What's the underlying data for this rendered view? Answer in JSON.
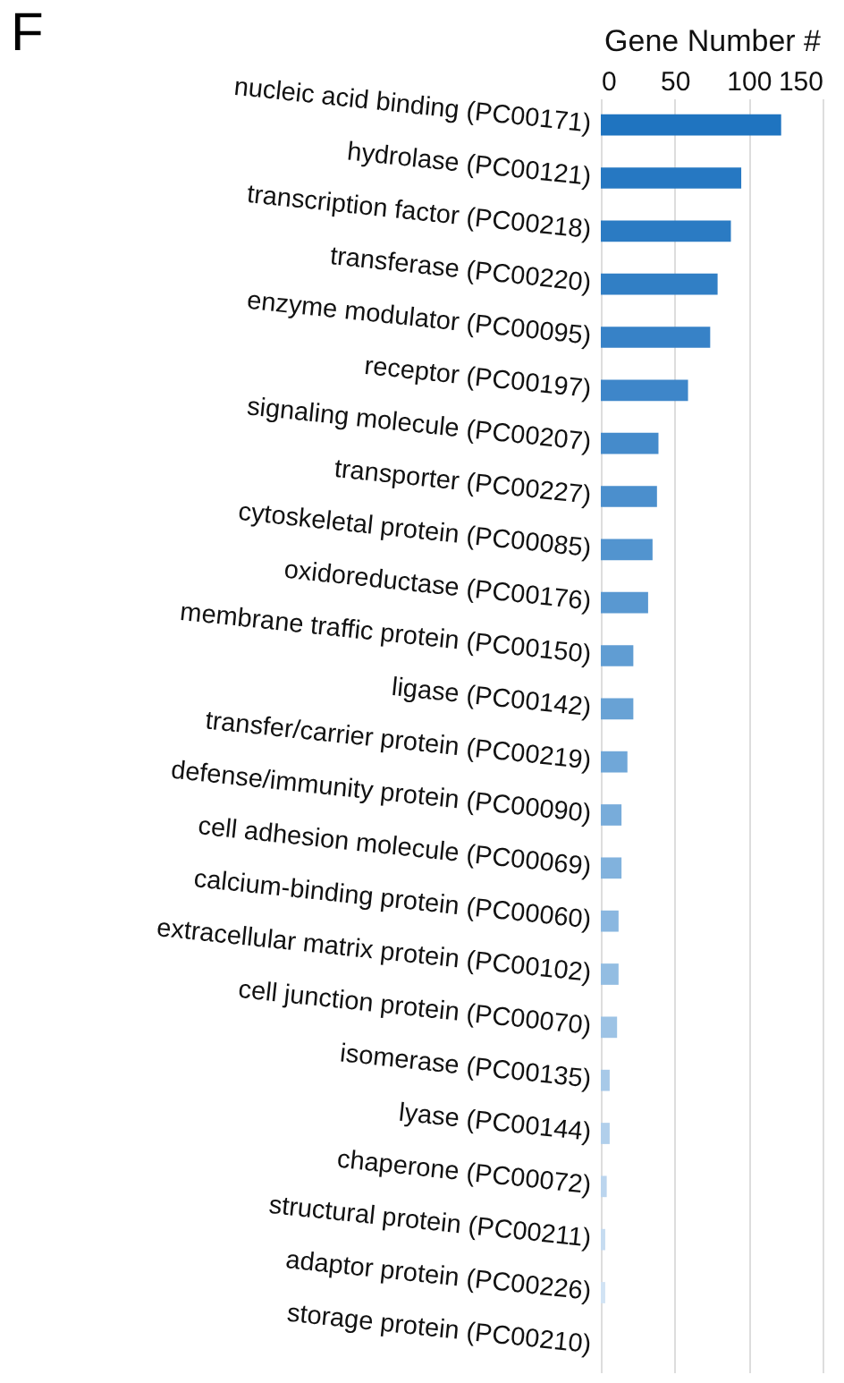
{
  "chart_data": {
    "type": "bar",
    "orientation": "horizontal",
    "title": "F",
    "xlabel": "Gene Number #",
    "categories": [
      "nucleic acid binding (PC00171)",
      "hydrolase (PC00121)",
      "transcription factor (PC00218)",
      "transferase (PC00220)",
      "enzyme modulator (PC00095)",
      "receptor (PC00197)",
      "signaling molecule (PC00207)",
      "transporter (PC00227)",
      "cytoskeletal protein (PC00085)",
      "oxidoreductase (PC00176)",
      "membrane traffic protein (PC00150)",
      "ligase (PC00142)",
      "transfer/carrier protein (PC00219)",
      "defense/immunity protein (PC00090)",
      "cell adhesion molecule (PC00069)",
      "calcium-binding protein (PC00060)",
      "extracellular matrix protein (PC00102)",
      "cell junction protein (PC00070)",
      "isomerase (PC00135)",
      "lyase (PC00144)",
      "chaperone (PC00072)",
      "structural protein (PC00211)",
      "adaptor protein (PC00226)",
      "storage protein (PC00210)"
    ],
    "values": [
      122,
      95,
      88,
      79,
      74,
      59,
      39,
      38,
      35,
      32,
      22,
      22,
      18,
      14,
      14,
      12,
      12,
      11,
      6,
      6,
      4,
      3,
      3,
      null
    ],
    "colors": [
      "#1f74c0",
      "#2678c2",
      "#2b7bc3",
      "#317fc5",
      "#3782c7",
      "#3e86c9",
      "#458bcb",
      "#4b8fcd",
      "#5294cf",
      "#5998d1",
      "#609dd3",
      "#68a2d5",
      "#70a7d8",
      "#78acda",
      "#81b2dd",
      "#8ab7e0",
      "#93bde2",
      "#9dc3e5",
      "#a7c9e8",
      "#b1cfeb",
      "#bbd5ee",
      "#c6dcf1",
      "#d1e3f4",
      "#dceaf7"
    ],
    "xlim": [
      0,
      150
    ],
    "xticks": [
      0,
      50,
      100,
      150
    ],
    "grid": "x"
  }
}
